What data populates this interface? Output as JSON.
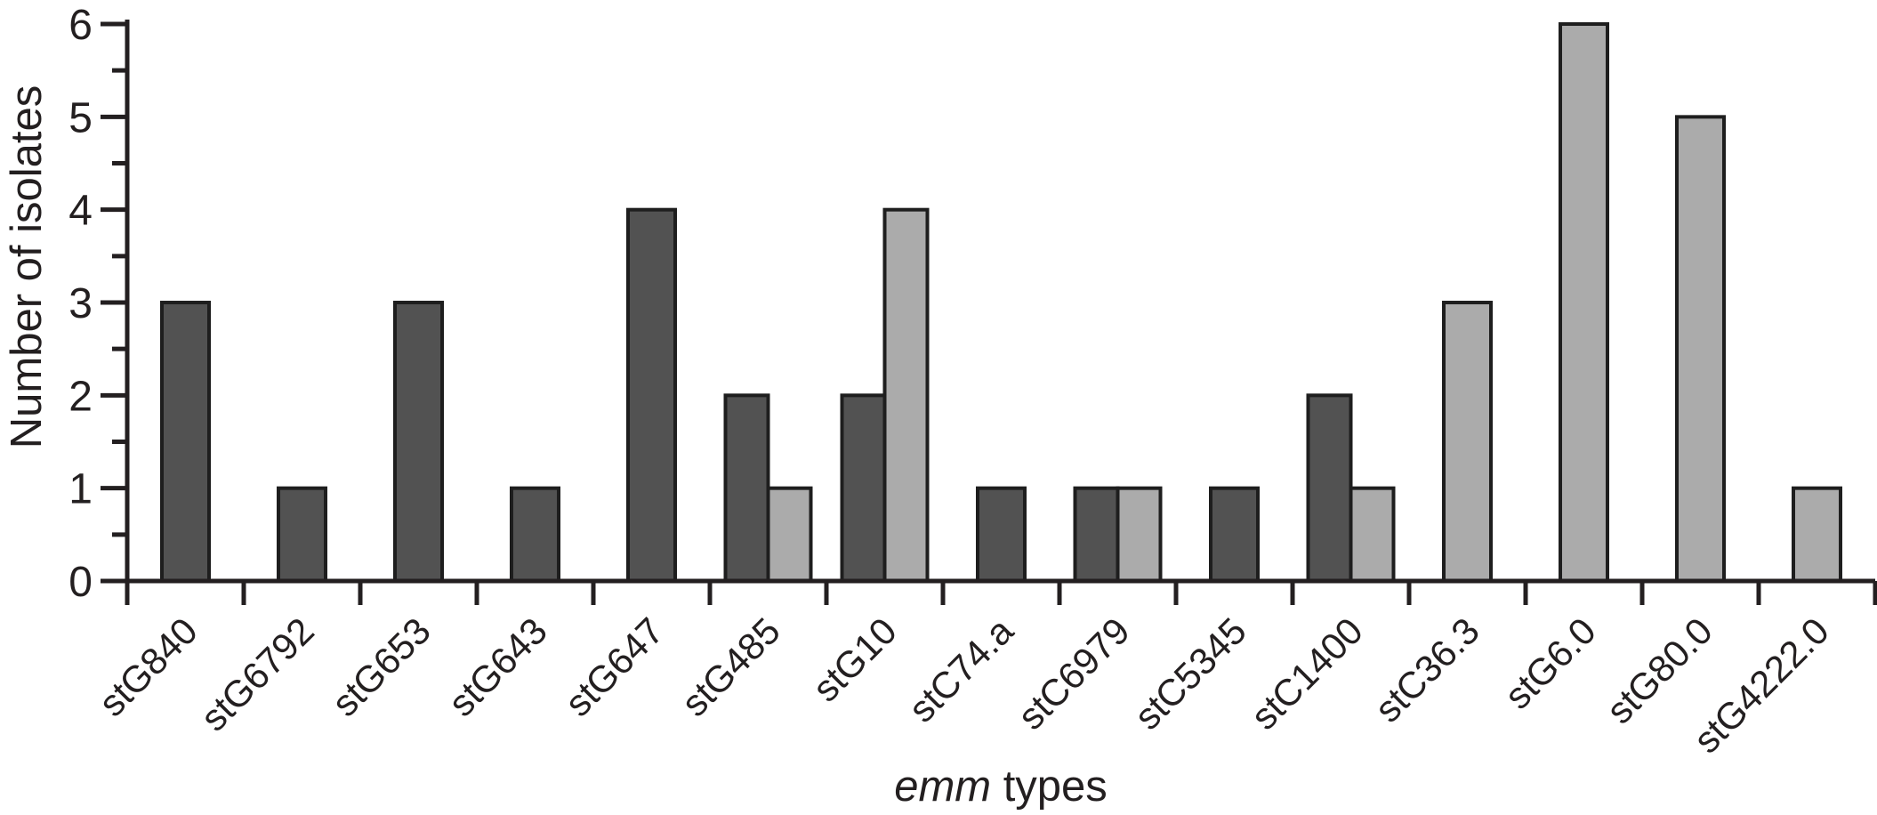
{
  "figure": {
    "background_color": "#ffffff",
    "text_color": "#231f20"
  },
  "chart_data": {
    "type": "bar",
    "title": "",
    "xlabel": "emm types",
    "xlabel_italic_part": "emm",
    "xlabel_regular_part": " types",
    "ylabel": "Number of isolates",
    "categories": [
      "stG840",
      "stG6792",
      "stG653",
      "stG643",
      "stG647",
      "stG485",
      "stG10",
      "stC74.a",
      "stC6979",
      "stC5345",
      "stC1400",
      "stC36.3",
      "stG6.0",
      "stG80.0",
      "stG4222.0"
    ],
    "series": [
      {
        "name": "dark-gray-isolates",
        "color": "#525252",
        "values": [
          3,
          1,
          3,
          1,
          4,
          2,
          2,
          1,
          1,
          1,
          2,
          null,
          null,
          null,
          null
        ]
      },
      {
        "name": "light-gray-isolates",
        "color": "#ababab",
        "values": [
          null,
          null,
          null,
          null,
          null,
          1,
          4,
          null,
          1,
          null,
          1,
          3,
          6,
          5,
          1
        ]
      }
    ],
    "ylim": [
      0,
      6
    ],
    "yticks": [
      0,
      1,
      2,
      3,
      4,
      5,
      6
    ],
    "minor_ytick_step": 0.5,
    "grid": false,
    "legend": "none",
    "bar_outline_color": "#1e1e1e",
    "axis_color": "#231f20",
    "x_tick_position": "between-categories",
    "x_label_rotation_deg": -45
  }
}
